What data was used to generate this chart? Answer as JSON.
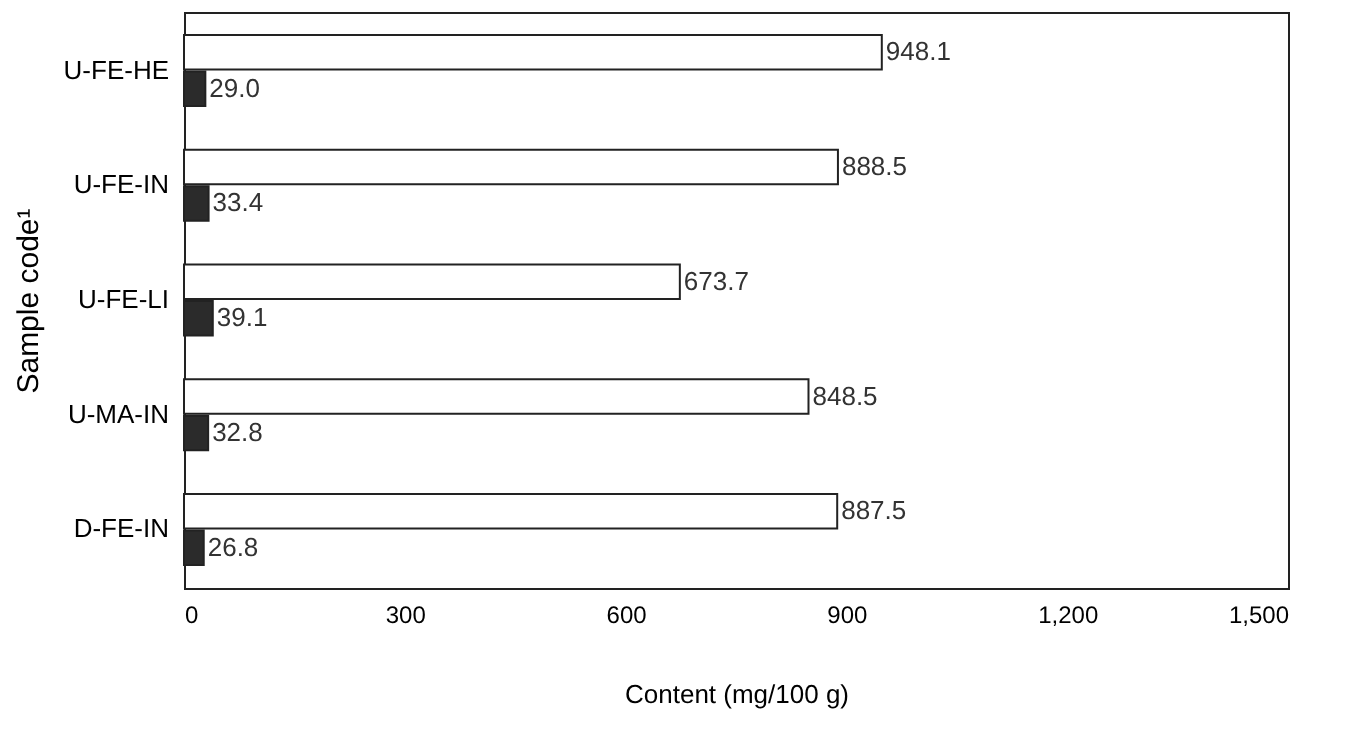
{
  "chart_data": {
    "type": "bar",
    "orientation": "horizontal",
    "xlabel": "Content (mg/100 g)",
    "ylabel": "Sample code¹",
    "categories": [
      "U-FE-HE",
      "U-FE-IN",
      "U-FE-LI",
      "U-MA-IN",
      "D-FE-IN"
    ],
    "series": [
      {
        "color": "#ffffff",
        "values": [
          948.1,
          888.5,
          673.7,
          848.5,
          887.5
        ],
        "value_labels": [
          "948.1",
          "888.5",
          "673.7",
          "848.5",
          "887.5"
        ]
      },
      {
        "color": "#2b2b2b",
        "values": [
          29.0,
          33.4,
          39.1,
          32.8,
          26.8
        ],
        "value_labels": [
          "29.0",
          "33.4",
          "39.1",
          "32.8",
          "26.8"
        ]
      }
    ],
    "xlim": [
      0,
      1500
    ],
    "xticks": [
      0,
      300,
      600,
      900,
      {
        "value": 1200,
        "label": "1,200"
      },
      {
        "value": 1500,
        "label": "1,500"
      }
    ],
    "grid": false,
    "legend": false
  }
}
